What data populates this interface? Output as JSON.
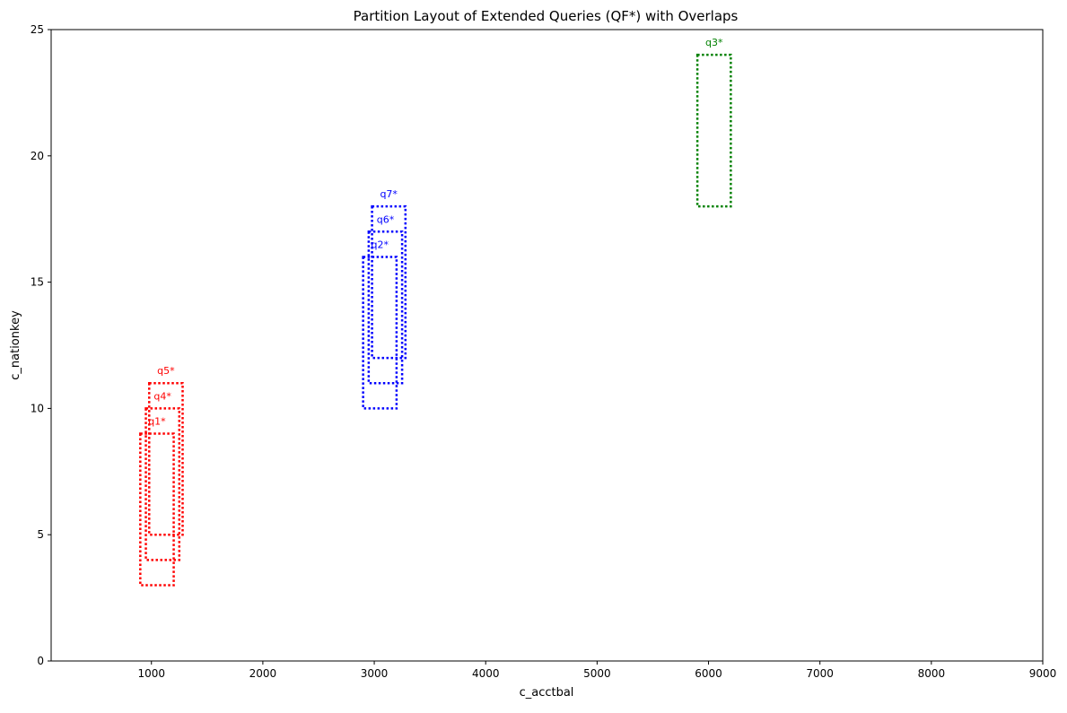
{
  "chart_data": {
    "type": "rectangles",
    "title": "Partition Layout of Extended Queries (QF*) with Overlaps",
    "xlabel": "c_acctbal",
    "ylabel": "c_nationkey",
    "xlim": [
      100,
      9000
    ],
    "ylim": [
      0,
      25
    ],
    "xticks": [
      1000,
      2000,
      3000,
      4000,
      5000,
      6000,
      7000,
      8000,
      9000
    ],
    "yticks": [
      0,
      5,
      10,
      15,
      20,
      25
    ],
    "grid": false,
    "legend": "none",
    "colors": {
      "red": "#ff0000",
      "blue": "#0000ff",
      "green": "#008000"
    },
    "series": [
      {
        "color": "red",
        "queries": [
          {
            "label": "q1*",
            "x": [
              900,
              1200
            ],
            "y": [
              3,
              9
            ]
          },
          {
            "label": "q4*",
            "x": [
              950,
              1250
            ],
            "y": [
              4,
              10
            ]
          },
          {
            "label": "q5*",
            "x": [
              980,
              1280
            ],
            "y": [
              5,
              11
            ]
          }
        ]
      },
      {
        "color": "blue",
        "queries": [
          {
            "label": "q2*",
            "x": [
              2900,
              3200
            ],
            "y": [
              10,
              16
            ]
          },
          {
            "label": "q6*",
            "x": [
              2950,
              3250
            ],
            "y": [
              11,
              17
            ]
          },
          {
            "label": "q7*",
            "x": [
              2980,
              3280
            ],
            "y": [
              12,
              18
            ]
          }
        ]
      },
      {
        "color": "green",
        "queries": [
          {
            "label": "q3*",
            "x": [
              5900,
              6200
            ],
            "y": [
              18,
              24
            ]
          }
        ]
      }
    ]
  }
}
